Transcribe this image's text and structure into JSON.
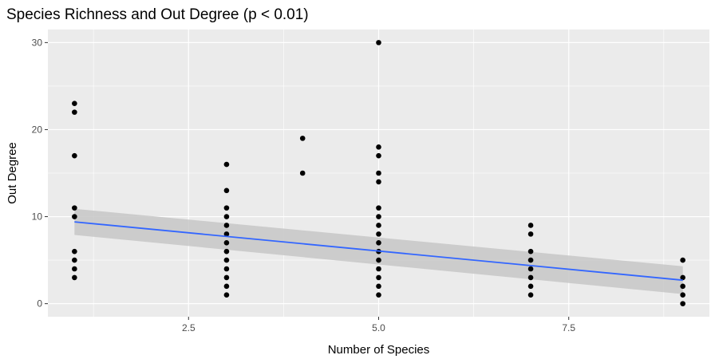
{
  "chart_data": {
    "type": "scatter",
    "title": "Species Richness and Out Degree (p < 0.01)",
    "xlabel": "Number of Species",
    "ylabel": "Out Degree",
    "xlim": [
      0.65,
      9.35
    ],
    "ylim": [
      -1.5,
      31.5
    ],
    "x_ticks": [
      2.5,
      5.0,
      7.5
    ],
    "x_tick_labels": [
      "2.5",
      "5.0",
      "7.5"
    ],
    "y_ticks": [
      0,
      10,
      20,
      30
    ],
    "y_tick_labels": [
      "0",
      "10",
      "20",
      "30"
    ],
    "grid": true,
    "legend": "none",
    "colors": {
      "panel": "#ebebeb",
      "grid": "#ffffff",
      "points": "#000000",
      "trend": "#3366ff",
      "ribbon": "#c7c7c7"
    },
    "points": [
      {
        "x": 1,
        "y": 23
      },
      {
        "x": 1,
        "y": 22
      },
      {
        "x": 1,
        "y": 17
      },
      {
        "x": 1,
        "y": 11
      },
      {
        "x": 1,
        "y": 10
      },
      {
        "x": 1,
        "y": 6
      },
      {
        "x": 1,
        "y": 5
      },
      {
        "x": 1,
        "y": 4
      },
      {
        "x": 1,
        "y": 3
      },
      {
        "x": 3,
        "y": 16
      },
      {
        "x": 3,
        "y": 13
      },
      {
        "x": 3,
        "y": 11
      },
      {
        "x": 3,
        "y": 10
      },
      {
        "x": 3,
        "y": 9
      },
      {
        "x": 3,
        "y": 8
      },
      {
        "x": 3,
        "y": 7
      },
      {
        "x": 3,
        "y": 6
      },
      {
        "x": 3,
        "y": 5
      },
      {
        "x": 3,
        "y": 4
      },
      {
        "x": 3,
        "y": 3
      },
      {
        "x": 3,
        "y": 2
      },
      {
        "x": 3,
        "y": 1
      },
      {
        "x": 4,
        "y": 19
      },
      {
        "x": 4,
        "y": 15
      },
      {
        "x": 5,
        "y": 30
      },
      {
        "x": 5,
        "y": 18
      },
      {
        "x": 5,
        "y": 17
      },
      {
        "x": 5,
        "y": 15
      },
      {
        "x": 5,
        "y": 14
      },
      {
        "x": 5,
        "y": 11
      },
      {
        "x": 5,
        "y": 10
      },
      {
        "x": 5,
        "y": 9
      },
      {
        "x": 5,
        "y": 8
      },
      {
        "x": 5,
        "y": 7
      },
      {
        "x": 5,
        "y": 6
      },
      {
        "x": 5,
        "y": 5
      },
      {
        "x": 5,
        "y": 4
      },
      {
        "x": 5,
        "y": 3
      },
      {
        "x": 5,
        "y": 2
      },
      {
        "x": 5,
        "y": 1
      },
      {
        "x": 7,
        "y": 9
      },
      {
        "x": 7,
        "y": 8
      },
      {
        "x": 7,
        "y": 6
      },
      {
        "x": 7,
        "y": 5
      },
      {
        "x": 7,
        "y": 4
      },
      {
        "x": 7,
        "y": 3
      },
      {
        "x": 7,
        "y": 2
      },
      {
        "x": 7,
        "y": 1
      },
      {
        "x": 9,
        "y": 5
      },
      {
        "x": 9,
        "y": 3
      },
      {
        "x": 9,
        "y": 2
      },
      {
        "x": 9,
        "y": 1
      },
      {
        "x": 9,
        "y": 0
      }
    ],
    "trend_line": {
      "method": "linear",
      "x": [
        1,
        9
      ],
      "y": [
        9.4,
        2.7
      ],
      "ci_lower": [
        7.9,
        1.1
      ],
      "ci_upper": [
        10.9,
        4.3
      ]
    }
  }
}
